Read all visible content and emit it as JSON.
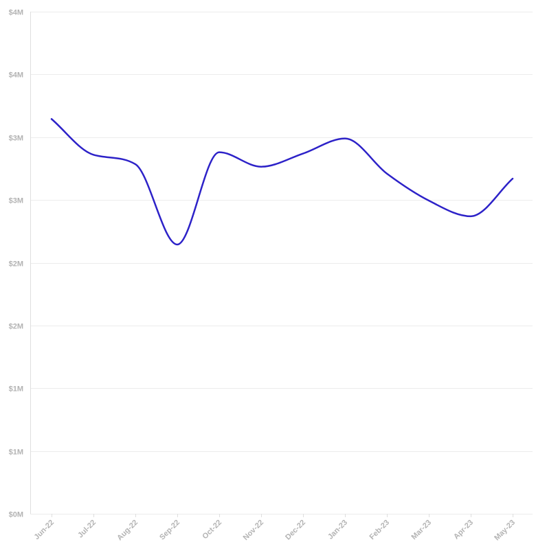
{
  "chart_data": {
    "type": "line",
    "title": "",
    "xlabel": "",
    "ylabel": "",
    "categories": [
      "Jun-22",
      "Jul-22",
      "Aug-22",
      "Sep-22",
      "Oct-22",
      "Nov-22",
      "Dec-22",
      "Jan-23",
      "Feb-23",
      "Mar-23",
      "Apr-23",
      "May-23"
    ],
    "series": [
      {
        "color": "#2d22c8",
        "values": [
          3145000,
          2860000,
          2785000,
          2145000,
          2880000,
          2765000,
          2870000,
          2990000,
          2710000,
          2495000,
          2370000,
          2670000
        ]
      }
    ],
    "y_ticks": [
      0,
      500000,
      1000000,
      1500000,
      2000000,
      2500000,
      3000000,
      3500000,
      4000000
    ],
    "y_tick_labels": [
      "$0M",
      "$1M",
      "$1M",
      "$2M",
      "$2M",
      "$3M",
      "$3M",
      "$4M",
      "$4M"
    ],
    "ylim": [
      0,
      4000000
    ],
    "grid": true,
    "legend": "none"
  }
}
